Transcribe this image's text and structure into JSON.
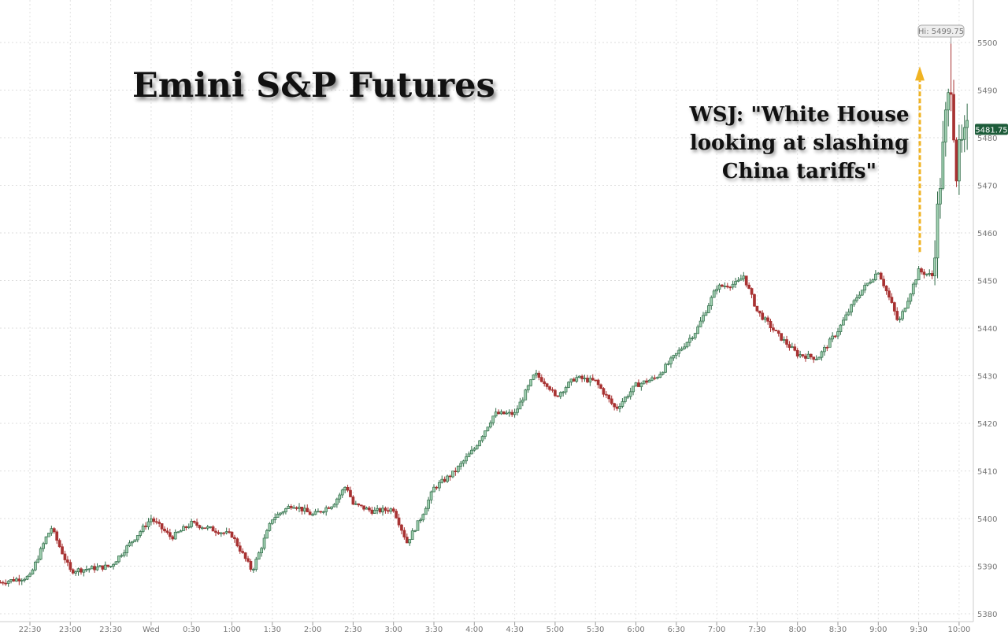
{
  "chart_data": {
    "type": "candlestick",
    "title": "Emini S&P Futures",
    "annotation": [
      "WSJ: \"White House",
      "looking at slashing",
      "China tariffs\""
    ],
    "ylim": [
      5378,
      5503
    ],
    "y_ticks": [
      5380,
      5390,
      5400,
      5410,
      5420,
      5430,
      5440,
      5450,
      5460,
      5470,
      5480,
      5490,
      5500
    ],
    "x_ticks": [
      {
        "label": "22:30",
        "min": 0
      },
      {
        "label": "23:00",
        "min": 30
      },
      {
        "label": "23:30",
        "min": 60
      },
      {
        "label": "Wed",
        "min": 90
      },
      {
        "label": "0:30",
        "min": 120
      },
      {
        "label": "1:00",
        "min": 150
      },
      {
        "label": "1:30",
        "min": 180
      },
      {
        "label": "2:00",
        "min": 210
      },
      {
        "label": "2:30",
        "min": 240
      },
      {
        "label": "3:00",
        "min": 270
      },
      {
        "label": "3:30",
        "min": 300
      },
      {
        "label": "4:00",
        "min": 330
      },
      {
        "label": "4:30",
        "min": 360
      },
      {
        "label": "5:00",
        "min": 390
      },
      {
        "label": "5:30",
        "min": 420
      },
      {
        "label": "6:00",
        "min": 450
      },
      {
        "label": "6:30",
        "min": 480
      },
      {
        "label": "7:00",
        "min": 510
      },
      {
        "label": "7:30",
        "min": 540
      },
      {
        "label": "8:00",
        "min": 570
      },
      {
        "label": "8:30",
        "min": 600
      },
      {
        "label": "9:00",
        "min": 630
      },
      {
        "label": "9:30",
        "min": 660
      },
      {
        "label": "10:00",
        "min": 690
      }
    ],
    "x_unit": "minutes since 22:30",
    "price_path": [
      [
        -22,
        5386.6
      ],
      [
        0,
        5387.8
      ],
      [
        12,
        5396
      ],
      [
        16,
        5398
      ],
      [
        30,
        5389
      ],
      [
        60,
        5390
      ],
      [
        90,
        5400
      ],
      [
        105,
        5396
      ],
      [
        120,
        5399
      ],
      [
        150,
        5396.5
      ],
      [
        165,
        5389
      ],
      [
        180,
        5400
      ],
      [
        195,
        5403
      ],
      [
        210,
        5400.7
      ],
      [
        225,
        5403
      ],
      [
        235,
        5407
      ],
      [
        240,
        5403
      ],
      [
        255,
        5401.5
      ],
      [
        270,
        5402
      ],
      [
        280,
        5395
      ],
      [
        290,
        5400
      ],
      [
        300,
        5406.4
      ],
      [
        315,
        5409.7
      ],
      [
        330,
        5414.7
      ],
      [
        345,
        5422
      ],
      [
        360,
        5422
      ],
      [
        375,
        5430.4
      ],
      [
        385,
        5428
      ],
      [
        390,
        5425.5
      ],
      [
        405,
        5429.6
      ],
      [
        420,
        5428.8
      ],
      [
        435,
        5423
      ],
      [
        450,
        5428
      ],
      [
        465,
        5429.6
      ],
      [
        480,
        5434.5
      ],
      [
        495,
        5439.5
      ],
      [
        510,
        5448.6
      ],
      [
        525,
        5449.4
      ],
      [
        530,
        5451
      ],
      [
        540,
        5443.6
      ],
      [
        555,
        5438.7
      ],
      [
        570,
        5434.5
      ],
      [
        585,
        5433.7
      ],
      [
        600,
        5439.5
      ],
      [
        615,
        5447
      ],
      [
        630,
        5452
      ],
      [
        640,
        5445
      ],
      [
        645,
        5441
      ],
      [
        660,
        5452
      ],
      [
        670,
        5451
      ],
      [
        675,
        5467.6
      ],
      [
        680,
        5484
      ],
      [
        684,
        5492
      ],
      [
        688,
        5472.6
      ],
      [
        690,
        5476.7
      ],
      [
        697,
        5481.75
      ]
    ],
    "high_label": "Hi: 5499.75",
    "high_value": 5499.75,
    "last_label": "5481.75",
    "last_value": 5481.75,
    "grid": true,
    "colors": {
      "up": "#2f6b47",
      "up_fill": "#9fcfb0",
      "down": "#a83232",
      "arrow": "#f0b323",
      "last_bg": "#1d5c3a"
    }
  }
}
